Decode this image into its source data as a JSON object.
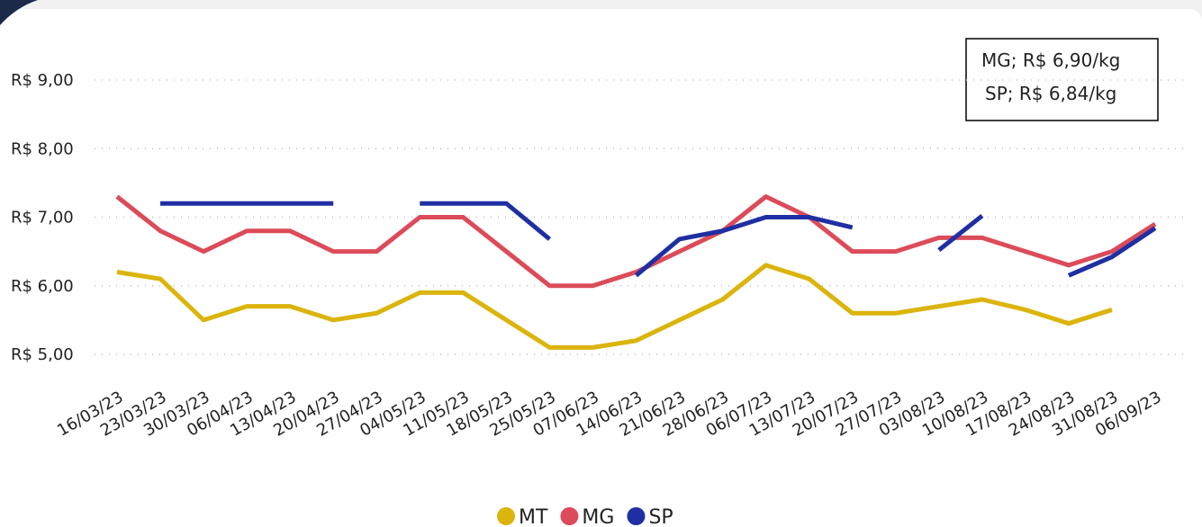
{
  "chart_data": {
    "type": "line",
    "categories": [
      "16/03/23",
      "23/03/23",
      "30/03/23",
      "06/04/23",
      "13/04/23",
      "20/04/23",
      "27/04/23",
      "04/05/23",
      "11/05/23",
      "18/05/23",
      "25/05/23",
      "07/06/23",
      "14/06/23",
      "21/06/23",
      "28/06/23",
      "06/07/23",
      "13/07/23",
      "20/07/23",
      "27/07/23",
      "03/08/23",
      "10/08/23",
      "17/08/23",
      "24/08/23",
      "31/08/23",
      "06/09/23"
    ],
    "series": [
      {
        "name": "MT",
        "color": "#dbb40c",
        "values": [
          6.2,
          6.1,
          5.5,
          5.7,
          5.7,
          5.5,
          5.6,
          5.9,
          5.9,
          5.5,
          5.1,
          5.1,
          5.2,
          5.5,
          5.8,
          6.3,
          6.1,
          5.6,
          5.6,
          5.7,
          5.8,
          5.65,
          5.45,
          5.65,
          null
        ]
      },
      {
        "name": "MG",
        "color": "#dc4b59",
        "values": [
          7.3,
          6.8,
          6.5,
          6.8,
          6.8,
          6.5,
          6.5,
          7.0,
          7.0,
          6.5,
          6.0,
          6.0,
          6.2,
          6.5,
          6.8,
          7.3,
          7.0,
          6.5,
          6.5,
          6.7,
          6.7,
          6.5,
          6.3,
          6.5,
          6.9
        ]
      },
      {
        "name": "SP",
        "color": "#1f2fa3",
        "values": [
          null,
          7.2,
          7.2,
          7.2,
          7.2,
          7.2,
          null,
          7.2,
          7.2,
          7.2,
          6.68,
          null,
          6.15,
          6.68,
          6.8,
          7.0,
          7.0,
          6.85,
          null,
          6.52,
          7.02,
          null,
          6.15,
          6.42,
          6.84
        ]
      }
    ],
    "ylim": [
      5,
      9
    ],
    "yticks": [
      {
        "value": 5,
        "label": "R$ 5,00"
      },
      {
        "value": 6,
        "label": "R$ 6,00"
      },
      {
        "value": 7,
        "label": "R$ 7,00"
      },
      {
        "value": 8,
        "label": "R$ 8,00"
      },
      {
        "value": 9,
        "label": "R$ 9,00"
      }
    ],
    "grid": true,
    "annotations": [
      "MG; R$ 6,90/kg",
      "SP; R$ 6,84/kg"
    ]
  }
}
